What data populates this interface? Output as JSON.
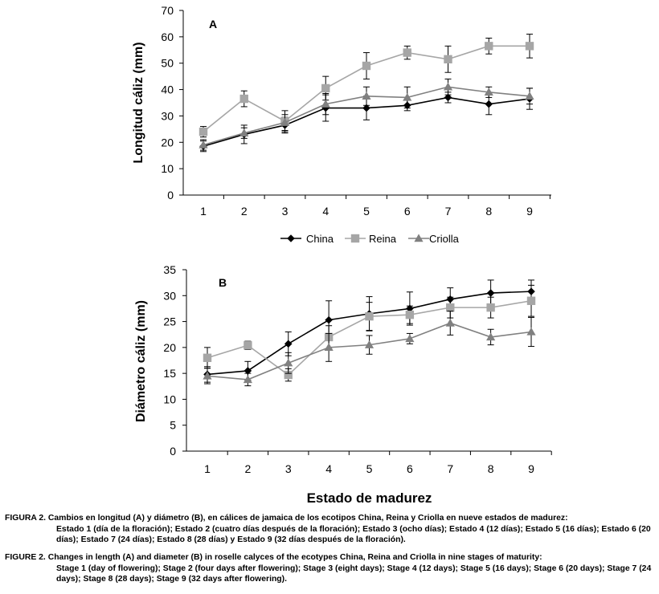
{
  "chart_data": [
    {
      "type": "line",
      "panel_label": "A",
      "title": "",
      "xlabel": "",
      "ylabel": "Longitud cáliz (mm)",
      "categories": [
        "1",
        "2",
        "3",
        "4",
        "5",
        "6",
        "7",
        "8",
        "9"
      ],
      "ylim": [
        0,
        70
      ],
      "yticks": [
        0,
        10,
        20,
        30,
        40,
        50,
        60,
        70
      ],
      "grid": false,
      "legend": "bottom",
      "series": [
        {
          "name": "China",
          "marker": "diamond",
          "color": "#000000",
          "values": [
            18.5,
            23,
            26.5,
            33,
            33,
            34,
            37,
            34.5,
            36.5
          ],
          "errors": [
            2,
            3.5,
            3,
            5,
            4.5,
            2,
            2,
            4,
            4
          ]
        },
        {
          "name": "Reina",
          "marker": "square",
          "color": "#a6a6a6",
          "values": [
            24,
            36.5,
            28,
            40.5,
            49,
            54,
            51.5,
            56.5,
            56.5
          ],
          "errors": [
            2,
            3,
            4,
            4.5,
            5,
            2.5,
            5,
            3,
            4.5
          ]
        },
        {
          "name": "Criolla",
          "marker": "triangle",
          "color": "#808080",
          "values": [
            19,
            23.5,
            27.5,
            34.5,
            37.5,
            37,
            41,
            39,
            37.5
          ],
          "errors": [
            2,
            2,
            3,
            4,
            3.5,
            4,
            3,
            2,
            3
          ]
        }
      ]
    },
    {
      "type": "line",
      "panel_label": "B",
      "title": "",
      "xlabel": "Estado de madurez",
      "ylabel": "Diámetro cáliz (mm)",
      "categories": [
        "1",
        "2",
        "3",
        "4",
        "5",
        "6",
        "7",
        "8",
        "9"
      ],
      "ylim": [
        0,
        35
      ],
      "yticks": [
        0,
        5,
        10,
        15,
        20,
        25,
        30,
        35
      ],
      "grid": false,
      "series": [
        {
          "name": "China",
          "marker": "diamond",
          "color": "#000000",
          "values": [
            14.8,
            15.5,
            20.7,
            25.3,
            26.5,
            27.5,
            29.3,
            30.5,
            30.8
          ],
          "errors": [
            1.5,
            1.8,
            2.3,
            3.7,
            3.3,
            3.2,
            2.2,
            2.5,
            2.2
          ]
        },
        {
          "name": "Reina",
          "marker": "square",
          "color": "#a6a6a6",
          "values": [
            18,
            20.4,
            14.7,
            22,
            26,
            26.3,
            27.7,
            27.7,
            29
          ],
          "errors": [
            2,
            0.8,
            1.2,
            2.2,
            2.7,
            1.7,
            2,
            2,
            3
          ]
        },
        {
          "name": "Criolla",
          "marker": "triangle",
          "color": "#808080",
          "values": [
            14.5,
            13.8,
            17,
            20,
            20.5,
            21.7,
            24.7,
            22,
            23
          ],
          "errors": [
            1.5,
            1.2,
            2,
            2.7,
            1.8,
            1,
            2.3,
            1.5,
            2.8
          ]
        }
      ]
    }
  ],
  "captions": {
    "es_lead": "FIGURA 2. Cambios en longitud (A) y diámetro (B), en cálices de jamaica de los ecotipos China, Reina y Criolla en nueve estados de madurez:",
    "es_rest": "Estado 1 (día de la floración); Estado 2 (cuatro días después de la floración); Estado 3 (ocho días); Estado 4 (12 días); Estado 5 (16 días); Estado 6 (20 días); Estado 7 (24 días); Estado 8 (28 días) y Estado 9 (32 días después de la floración).",
    "en_lead": "FIGURE 2. Changes in length (A) and diameter (B) in roselle calyces of the ecotypes China, Reina and Criolla in nine stages of maturity:",
    "en_rest": "Stage 1 (day of flowering); Stage 2 (four days after flowering); Stage 3 (eight days); Stage 4 (12 days); Stage 5 (16 days); Stage 6 (20 days); Stage 7 (24 days); Stage 8 (28 days); Stage 9 (32 days after flowering)."
  }
}
